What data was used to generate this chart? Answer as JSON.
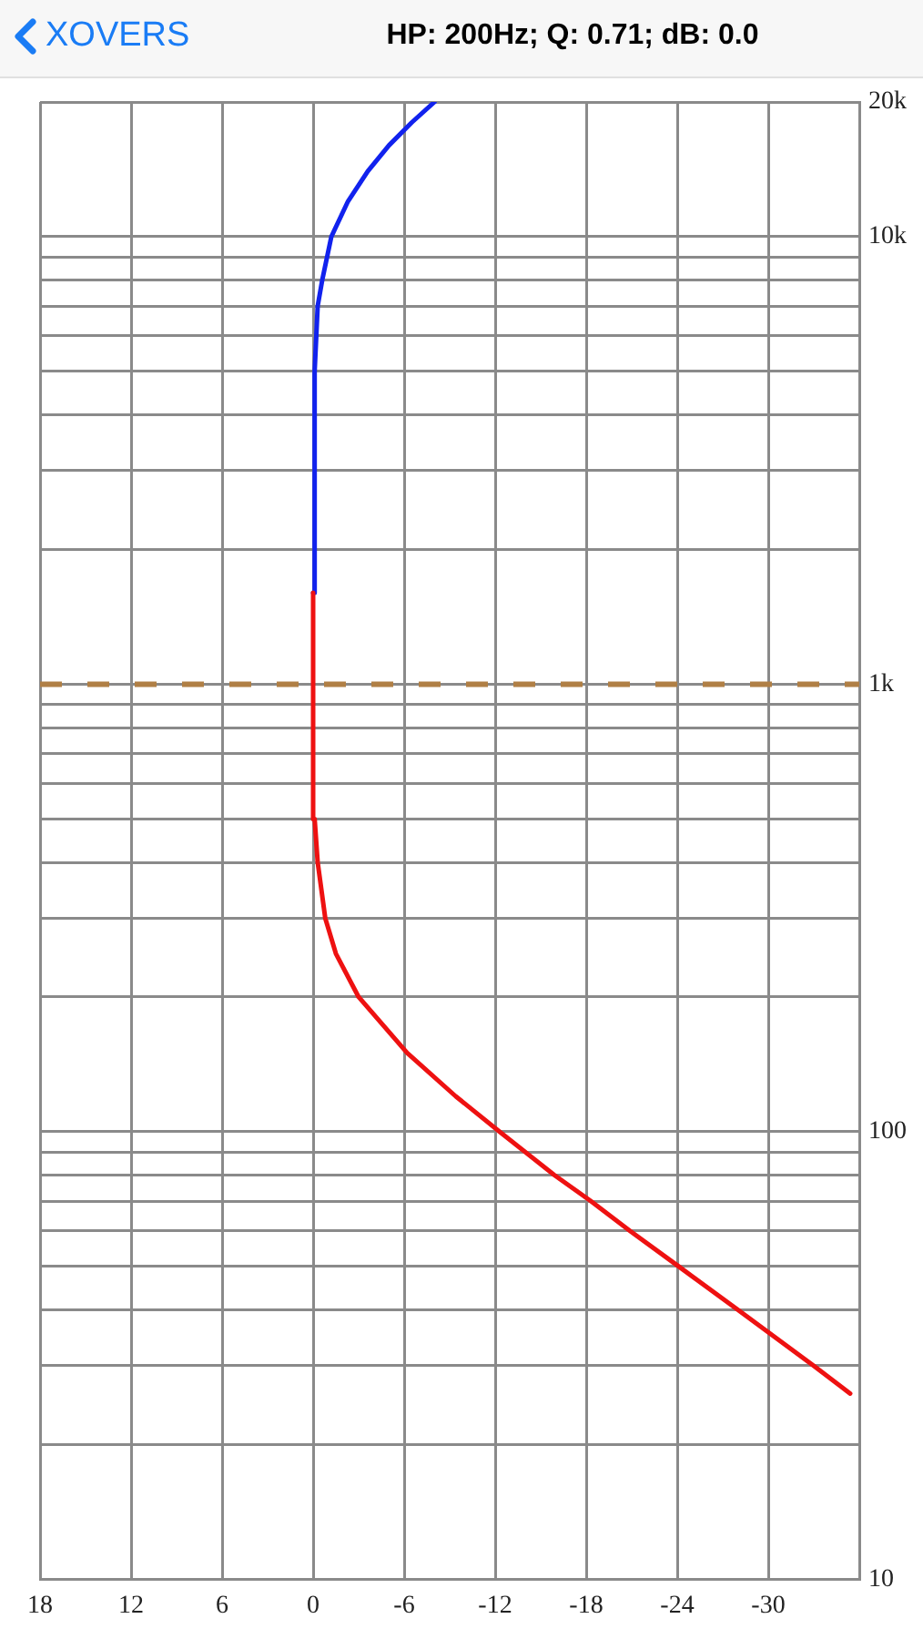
{
  "chart_data": {
    "type": "line",
    "title": "HP: 200Hz; Q: 0.71; dB: 0.0",
    "annotations": [
      "XOVERS"
    ],
    "series": [
      {
        "color": "#ee1111",
        "x": [
          -35.4,
          -33.0,
          -28.0,
          -24.1,
          -20.9,
          -18.3,
          -15.9,
          -12.3,
          -9.4,
          -6.2,
          -3.0,
          -1.5,
          -0.8,
          -0.3,
          -0.1,
          0
        ],
        "values": [
          26,
          30,
          40,
          50,
          60,
          70,
          80,
          100,
          120,
          150,
          200,
          250,
          300,
          400,
          500,
          1600
        ]
      },
      {
        "color": "#1122ee",
        "x": [
          0,
          -0.1,
          -0.3,
          -0.6,
          -1.2,
          -2.3,
          -3.6,
          -5.0,
          -6.5,
          -8.0
        ],
        "values": [
          1600,
          5000,
          7000,
          8000,
          10000,
          12000,
          14000,
          16000,
          18000,
          20000
        ]
      }
    ],
    "ylim": [
      10,
      20000
    ],
    "yticks": [
      10,
      {
        "value": 20,
        "label": null
      },
      {
        "value": 30,
        "label": null
      },
      {
        "value": 40,
        "label": null
      },
      {
        "value": 50,
        "label": null
      },
      {
        "value": 60,
        "label": null
      },
      {
        "value": 70,
        "label": null
      },
      {
        "value": 80,
        "label": null
      },
      {
        "value": 90,
        "label": null
      },
      100,
      {
        "value": 200,
        "label": null
      },
      {
        "value": 300,
        "label": null
      },
      {
        "value": 400,
        "label": null
      },
      {
        "value": 500,
        "label": null
      },
      {
        "value": 600,
        "label": null
      },
      {
        "value": 700,
        "label": null
      },
      {
        "value": 800,
        "label": null
      },
      {
        "value": 900,
        "label": null
      },
      {
        "value": 1000,
        "label": "1k"
      },
      {
        "value": 2000,
        "label": null
      },
      {
        "value": 3000,
        "label": null
      },
      {
        "value": 4000,
        "label": null
      },
      {
        "value": 5000,
        "label": null
      },
      {
        "value": 6000,
        "label": null
      },
      {
        "value": 7000,
        "label": null
      },
      {
        "value": 8000,
        "label": null
      },
      {
        "value": 9000,
        "label": null
      },
      {
        "value": 10000,
        "label": "10k"
      },
      {
        "value": 20000,
        "label": "20k"
      }
    ],
    "xlim": [
      18,
      -36
    ],
    "xticks": [
      18,
      12,
      6,
      0,
      -6,
      -12,
      -18,
      -24,
      -30
    ],
    "log": "y",
    "grid": true,
    "marker": "none",
    "line_style": "solid",
    "ref_lines": [
      {
        "axis": "y",
        "value": 1000,
        "color": "#b07f45",
        "line_style": "dashed"
      }
    ]
  }
}
